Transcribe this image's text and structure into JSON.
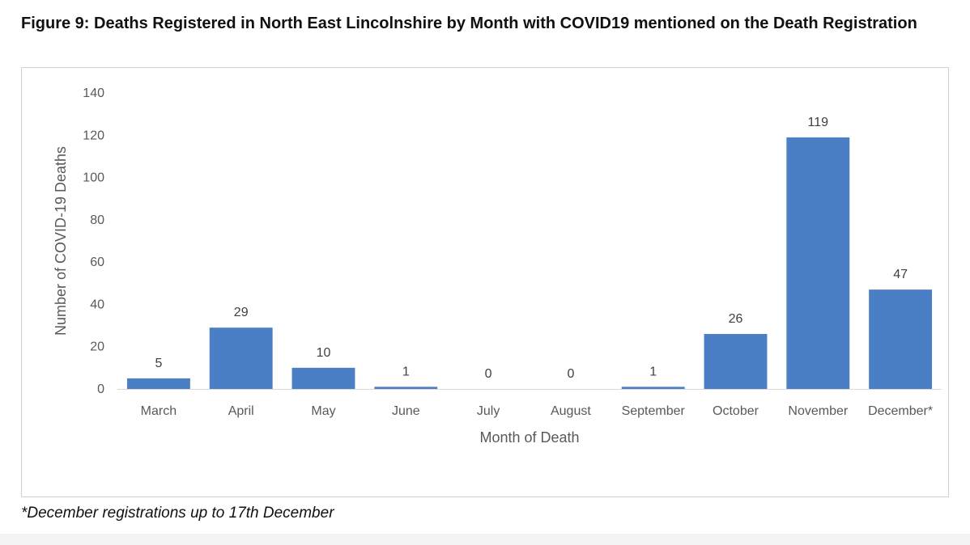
{
  "figure": {
    "title": "Figure 9: Deaths Registered in North East Lincolnshire by Month with COVID19 mentioned on the Death Registration",
    "footnote": "*December registrations up to 17th December"
  },
  "chart_data": {
    "type": "bar",
    "title": "",
    "xlabel": "Month of Death",
    "ylabel": "Number of COVID-19 Deaths",
    "categories": [
      "March",
      "April",
      "May",
      "June",
      "July",
      "August",
      "September",
      "October",
      "November",
      "December*"
    ],
    "values": [
      5,
      29,
      10,
      1,
      0,
      0,
      1,
      26,
      119,
      47
    ],
    "ylim": [
      0,
      140
    ],
    "yticks": [
      0,
      20,
      40,
      60,
      80,
      100,
      120,
      140
    ],
    "bar_color": "#4a7ec5",
    "grid": false,
    "legend": "none"
  }
}
